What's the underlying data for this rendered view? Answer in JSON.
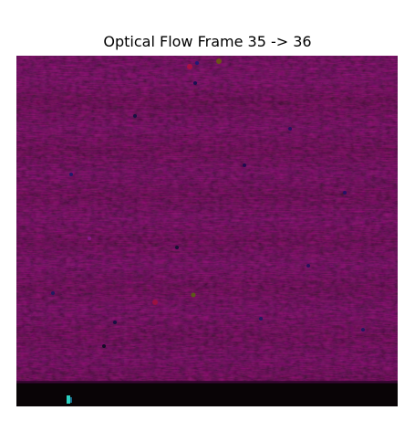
{
  "figure": {
    "title": "Optical Flow Frame 35 -> 36"
  },
  "image": {
    "description_colors": {
      "dominant": "#5a0a5a",
      "band_dark": "#4a0540",
      "band_light": "#6a0e6e",
      "magenta_speck": "#8a1b8c",
      "blue_speck": "#1a1a7a",
      "bottom_strip": "#0a0506",
      "cyan_blip": "#2bd0c0"
    }
  }
}
